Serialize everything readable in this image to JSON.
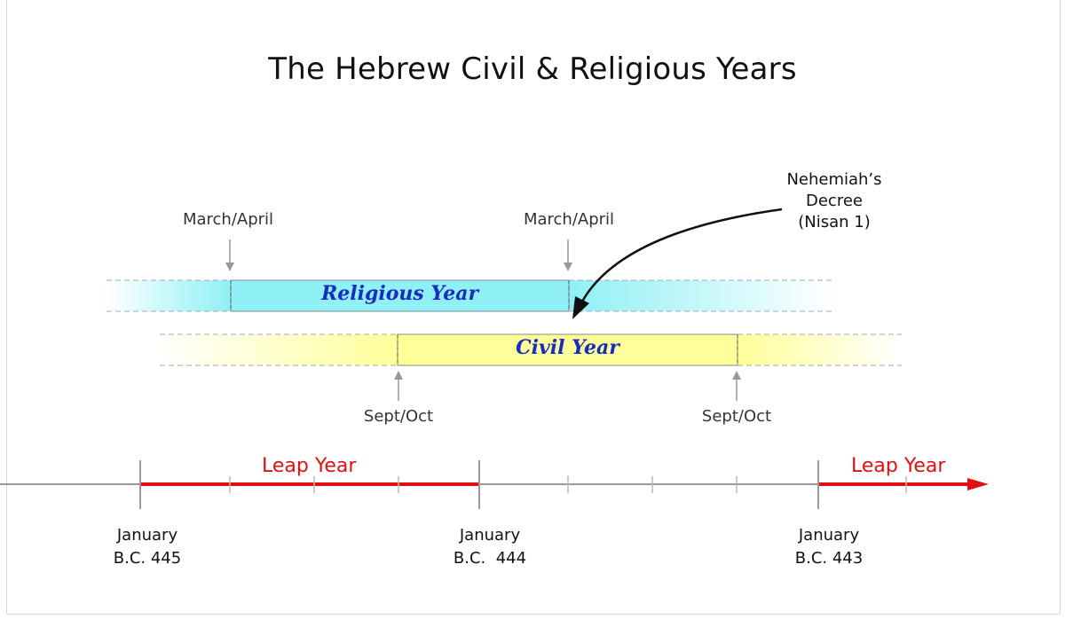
{
  "title": "The Hebrew Civil & Religious Years",
  "annotation": {
    "lines": [
      "Nehemiah’s",
      "Decree",
      "(Nisan 1)"
    ]
  },
  "religious_year": {
    "label": "Religious Year",
    "start_label": "March/April",
    "end_label": "March/April",
    "color": "#8ff0f5"
  },
  "civil_year": {
    "label": "Civil Year",
    "start_label": "Sept/Oct",
    "end_label": "Sept/Oct",
    "color": "#ffff99"
  },
  "timeline": {
    "leap_label_1": "Leap Year",
    "leap_label_2": "Leap Year",
    "leap_color": "#e01010",
    "ticks": [
      {
        "month": "January",
        "year": "B.C. 445"
      },
      {
        "month": "January",
        "year": "B.C.  444"
      },
      {
        "month": "January",
        "year": "B.C. 443"
      }
    ]
  }
}
